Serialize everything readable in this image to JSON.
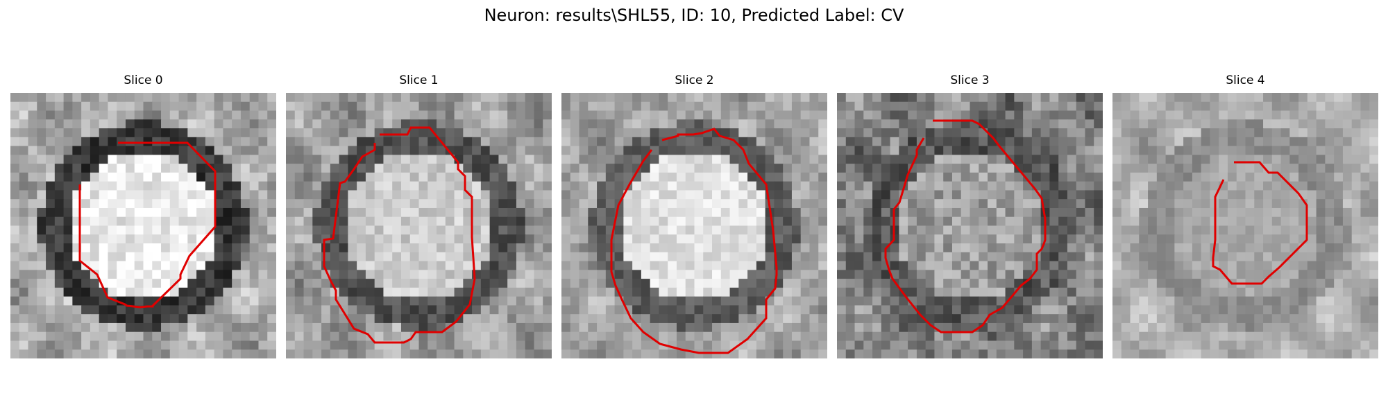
{
  "figure": {
    "title": "Neuron: results\\SHL55, ID: 10, Predicted Label: CV"
  },
  "panels": [
    {
      "title": "Slice 0",
      "seed": 11,
      "bg": 0.66,
      "cell": 0.92,
      "ring": 0.22,
      "contrast": 0.25,
      "outline_color": "#e00000"
    },
    {
      "title": "Slice 1",
      "seed": 23,
      "bg": 0.62,
      "cell": 0.8,
      "ring": 0.32,
      "contrast": 0.22,
      "outline_color": "#e00000"
    },
    {
      "title": "Slice 2",
      "seed": 37,
      "bg": 0.64,
      "cell": 0.88,
      "ring": 0.36,
      "contrast": 0.2,
      "outline_color": "#e00000"
    },
    {
      "title": "Slice 3",
      "seed": 41,
      "bg": 0.5,
      "cell": 0.62,
      "ring": 0.34,
      "contrast": 0.3,
      "outline_color": "#e00000"
    },
    {
      "title": "Slice 4",
      "seed": 53,
      "bg": 0.68,
      "cell": 0.66,
      "ring": 0.55,
      "contrast": 0.14,
      "outline_color": "#e00000"
    }
  ]
}
